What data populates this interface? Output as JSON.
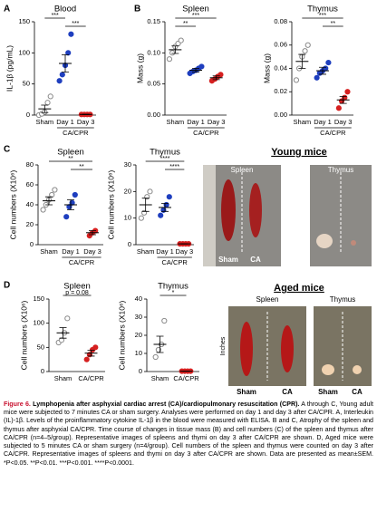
{
  "panel_labels": [
    "A",
    "B",
    "C",
    "D"
  ],
  "chart_data": [
    {
      "type": "dot",
      "title": "Blood",
      "ylabel": "IL-1β (pg/mL)",
      "categories": [
        "Sham",
        "Day 1",
        "Day 3"
      ],
      "group_label": "CA/CPR",
      "colors": [
        "#8a8a8a",
        "#1f3fbf",
        "#d62020"
      ],
      "filled": [
        false,
        true,
        true
      ],
      "values": [
        [
          0,
          2,
          5,
          20,
          30
        ],
        [
          55,
          65,
          80,
          100,
          130
        ],
        [
          1,
          1,
          1,
          1
        ]
      ],
      "means": [
        10,
        83,
        1
      ],
      "sem": [
        6,
        14,
        0.3
      ],
      "ylim": [
        0,
        150
      ],
      "yticks": [
        0,
        50,
        100,
        150
      ],
      "comparisons": [
        {
          "groups": [
            "Sham",
            "Day 1"
          ],
          "label": "***"
        },
        {
          "groups": [
            "Day 1",
            "Day 3"
          ],
          "label": "***"
        }
      ]
    },
    {
      "type": "dot",
      "title": "Spleen",
      "ylabel": "Mass (g)",
      "categories": [
        "Sham",
        "Day 1",
        "Day 3"
      ],
      "group_label": "CA/CPR",
      "colors": [
        "#8a8a8a",
        "#1f3fbf",
        "#d62020"
      ],
      "filled": [
        false,
        true,
        true
      ],
      "values": [
        [
          0.09,
          0.1,
          0.11,
          0.115,
          0.12
        ],
        [
          0.067,
          0.07,
          0.072,
          0.075,
          0.078
        ],
        [
          0.055,
          0.058,
          0.062,
          0.065
        ]
      ],
      "means": [
        0.105,
        0.072,
        0.06
      ],
      "sem": [
        0.006,
        0.003,
        0.003
      ],
      "ylim": [
        0,
        0.15
      ],
      "yticks": [
        {
          "value": 0,
          "label": "0.00"
        },
        {
          "value": 0.05,
          "label": "0.05"
        },
        {
          "value": 0.1,
          "label": "0.10"
        },
        {
          "value": 0.15,
          "label": "0.15"
        }
      ],
      "comparisons": [
        {
          "groups": [
            "Sham",
            "Day 3"
          ],
          "label": "***"
        },
        {
          "groups": [
            "Sham",
            "Day 1"
          ],
          "label": "**"
        }
      ]
    },
    {
      "type": "dot",
      "title": "Thymus",
      "ylabel": "Mass (g)",
      "categories": [
        "Sham",
        "Day 1",
        "Day 3"
      ],
      "group_label": "CA/CPR",
      "colors": [
        "#8a8a8a",
        "#1f3fbf",
        "#d62020"
      ],
      "filled": [
        false,
        true,
        true
      ],
      "values": [
        [
          0.03,
          0.04,
          0.05,
          0.055,
          0.06
        ],
        [
          0.032,
          0.036,
          0.038,
          0.04,
          0.045
        ],
        [
          0.006,
          0.012,
          0.015,
          0.02
        ]
      ],
      "means": [
        0.046,
        0.038,
        0.013
      ],
      "sem": [
        0.006,
        0.003,
        0.003
      ],
      "ylim": [
        0,
        0.08
      ],
      "yticks": [
        {
          "value": 0,
          "label": "0.00"
        },
        {
          "value": 0.02,
          "label": "0.02"
        },
        {
          "value": 0.04,
          "label": "0.04"
        },
        {
          "value": 0.06,
          "label": "0.06"
        },
        {
          "value": 0.08,
          "label": "0.08"
        }
      ],
      "comparisons": [
        {
          "groups": [
            "Sham",
            "Day 3"
          ],
          "label": "***"
        },
        {
          "groups": [
            "Day 1",
            "Day 3"
          ],
          "label": "**"
        }
      ]
    },
    {
      "type": "dot",
      "title": "Spleen",
      "ylabel": "Cell numbers (X10⁶)",
      "categories": [
        "Sham",
        "Day 1",
        "Day 3"
      ],
      "group_label": "CA/CPR",
      "colors": [
        "#8a8a8a",
        "#1f3fbf",
        "#d62020"
      ],
      "filled": [
        false,
        true,
        true
      ],
      "values": [
        [
          35,
          40,
          45,
          50,
          55
        ],
        [
          28,
          38,
          42,
          50
        ],
        [
          9,
          12,
          14
        ]
      ],
      "means": [
        44,
        40,
        12
      ],
      "sem": [
        4,
        5,
        2
      ],
      "ylim": [
        0,
        80
      ],
      "yticks": [
        0,
        20,
        40,
        60,
        80
      ],
      "comparisons": [
        {
          "groups": [
            "Sham",
            "Day 3"
          ],
          "label": "**"
        },
        {
          "groups": [
            "Day 1",
            "Day 3"
          ],
          "label": "**"
        }
      ]
    },
    {
      "type": "dot",
      "title": "Thymus",
      "ylabel": "Cell numbers (X10⁶)",
      "categories": [
        "Sham",
        "Day 1",
        "Day 3"
      ],
      "group_label": "CA/CPR",
      "colors": [
        "#8a8a8a",
        "#1f3fbf",
        "#d62020"
      ],
      "filled": [
        false,
        true,
        true
      ],
      "values": [
        [
          10,
          12,
          18,
          20
        ],
        [
          11,
          13,
          15,
          18
        ],
        [
          0.3,
          0.3,
          0.3,
          0.3
        ]
      ],
      "means": [
        15,
        14,
        0.3
      ],
      "sem": [
        2.5,
        1.5,
        0.05
      ],
      "ylim": [
        0,
        30
      ],
      "yticks": [
        0,
        10,
        20,
        30
      ],
      "comparisons": [
        {
          "groups": [
            "Sham",
            "Day 3"
          ],
          "label": "****"
        },
        {
          "groups": [
            "Day 1",
            "Day 3"
          ],
          "label": "****"
        }
      ]
    },
    {
      "type": "dot",
      "title": "Spleen",
      "ylabel": "Cell numbers (X10⁶)",
      "categories": [
        "Sham",
        "CA/CPR"
      ],
      "colors": [
        "#8a8a8a",
        "#d62020"
      ],
      "filled": [
        false,
        true
      ],
      "values": [
        [
          60,
          65,
          80,
          110
        ],
        [
          25,
          35,
          45,
          50
        ]
      ],
      "means": [
        80,
        38
      ],
      "sem": [
        11,
        6
      ],
      "ylim": [
        0,
        150
      ],
      "yticks": [
        0,
        50,
        100,
        150
      ],
      "comparisons": [
        {
          "groups": [
            "Sham",
            "CA/CPR"
          ],
          "label": "p = 0.08"
        }
      ]
    },
    {
      "type": "dot",
      "title": "Thymus",
      "ylabel": "Cell numbers (X10⁶)",
      "categories": [
        "Sham",
        "CA/CPR"
      ],
      "colors": [
        "#8a8a8a",
        "#d62020"
      ],
      "filled": [
        false,
        true
      ],
      "values": [
        [
          8,
          12,
          15,
          28
        ],
        [
          0.2,
          0.2,
          0.2,
          0.2
        ]
      ],
      "means": [
        15,
        0.2
      ],
      "sem": [
        4.5,
        0.05
      ],
      "ylim": [
        0,
        40
      ],
      "yticks": [
        0,
        10,
        20,
        30,
        40
      ],
      "comparisons": [
        {
          "groups": [
            "Sham",
            "CA/CPR"
          ],
          "label": "*"
        }
      ]
    }
  ],
  "photos": {
    "young": {
      "title": "Young mice",
      "organs": [
        "Spleen",
        "Thymus"
      ],
      "groups": [
        "Sham",
        "CA"
      ]
    },
    "aged": {
      "title": "Aged mice",
      "organs": [
        "Spleen",
        "Thymus"
      ],
      "groups": [
        "Sham",
        "CA"
      ],
      "scale": "Inches"
    }
  },
  "caption": {
    "figure": "Figure 6.",
    "title": "Lymphopenia after asphyxial cardiac arrest (CA)/cardiopulmonary resuscitation (CPR).",
    "body": "A through C, Young adult mice were subjected to 7 minutes CA or sham surgery. Analyses were performed on day 1 and day 3 after CA/CPR. A, Interleukin (IL)-1β. Levels of the proinflammatory cytokine IL-1β in the blood were measured with ELISA. B and C, Atrophy of the spleen and thymus after asphyxial CA/CPR. Time course of changes in tissue mass (B) and cell numbers (C) of the spleen and thymus after CA/CPR (n=4–5/group). Representative images of spleens and thymi on day 3 after CA/CPR are shown. D, Aged mice were subjected to 5 minutes CA or sham surgery (n=4/group). Cell numbers of the spleen and thymus were counted on day 3 after CA/CPR. Representative images of spleens and thymi on day 3 after CA/CPR are shown. Data are presented as mean±SEM. *P<0.05. **P<0.01. ***P<0.001. ****P<0.0001."
  }
}
